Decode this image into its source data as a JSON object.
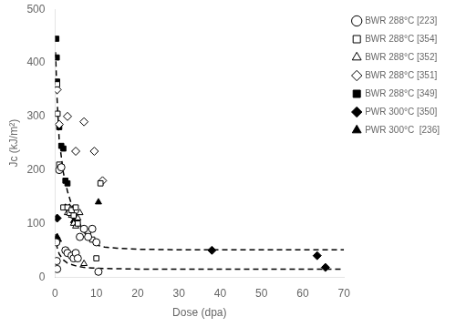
{
  "chart_data": {
    "type": "scatter",
    "xlabel": "Dose (dpa)",
    "ylabel": "Jc (kJ/m²)",
    "xlim": [
      0,
      70
    ],
    "ylim": [
      0,
      500
    ],
    "xticks": [
      0,
      10,
      20,
      30,
      40,
      50,
      60,
      70
    ],
    "yticks": [
      0,
      100,
      200,
      300,
      400,
      500
    ],
    "grid": false,
    "legend": "upper right",
    "series": [
      {
        "type": "line",
        "line_style": "dashed",
        "color": "#000000",
        "x": [
          0.1,
          0.5,
          1.0,
          2.0,
          3.0,
          4.0,
          5.0,
          6.0,
          7.0,
          8.0,
          9.0,
          10.0,
          12.0,
          15.0,
          20.0,
          30.0,
          40.0,
          50.0,
          60.0,
          70.0
        ],
        "values": [
          420,
          330,
          255,
          195,
          160,
          135,
          115,
          98,
          84,
          74,
          66,
          60,
          56,
          54,
          52,
          51,
          51,
          51,
          51,
          51
        ]
      },
      {
        "type": "line",
        "line_style": "dashed",
        "color": "#000000",
        "x": [
          0.1,
          0.5,
          1.0,
          2.0,
          3.0,
          5.0,
          7.0,
          9.0,
          12.0,
          20.0,
          40.0,
          70.0
        ],
        "values": [
          80,
          55,
          43,
          32,
          26,
          21,
          18,
          17,
          16,
          15,
          15,
          15
        ]
      },
      {
        "name": "BWR 288°C [223]",
        "marker": "circle",
        "color": "#000000",
        "x": [
          0.3,
          0.4,
          0.5,
          1.0,
          1.5,
          2.5,
          3.0,
          4.0,
          4.5,
          5.0,
          5.5,
          6.0,
          7.0,
          8.0,
          9.0,
          10.0,
          10.5
        ],
        "values": [
          65,
          30,
          15,
          200,
          205,
          50,
          45,
          40,
          35,
          45,
          35,
          75,
          90,
          75,
          90,
          65,
          10
        ]
      },
      {
        "name": "BWR 288°C [354]",
        "marker": "square",
        "color": "#000000",
        "x": [
          0.5,
          0.6,
          1.0,
          1.5,
          2.0,
          3.0,
          3.5,
          4.0,
          4.5,
          5.0,
          5.5,
          7.0,
          8.0,
          9.0,
          10.0,
          11.0
        ],
        "values": [
          360,
          305,
          210,
          205,
          130,
          130,
          120,
          125,
          115,
          130,
          100,
          90,
          85,
          70,
          35,
          175
        ]
      },
      {
        "name": "BWR 288°C [352]",
        "marker": "triangle",
        "color": "#000000",
        "x": [
          2.5,
          3.0,
          3.5,
          4.0,
          4.5,
          5.0,
          5.5,
          6.0,
          7.0
        ],
        "values": [
          130,
          120,
          130,
          115,
          100,
          95,
          110,
          120,
          25
        ]
      },
      {
        "name": "BWR 288°C [351]",
        "marker": "diamond",
        "color": "#000000",
        "x": [
          0.5,
          1.0,
          3.0,
          5.0,
          7.0,
          9.5,
          11.5
        ],
        "values": [
          350,
          285,
          300,
          235,
          290,
          235,
          180
        ]
      },
      {
        "name": "BWR 288°C [349]",
        "marker": "filled_square",
        "color": "#000000",
        "x": [
          0.3,
          0.4,
          0.5,
          1.0,
          1.5,
          2.0,
          2.5,
          3.0
        ],
        "values": [
          445,
          410,
          365,
          280,
          245,
          240,
          180,
          175
        ]
      },
      {
        "name": "PWR 300°C [350]",
        "marker": "filled_diamond",
        "color": "#000000",
        "x": [
          0.5,
          38.0,
          63.5,
          65.5
        ],
        "values": [
          110,
          50,
          40,
          18
        ]
      },
      {
        "name": "PWR 300°C  [236]",
        "marker": "filled_triangle",
        "color": "#000000",
        "x": [
          0.3,
          0.5,
          0.8,
          4.5,
          5.5,
          10.5
        ],
        "values": [
          65,
          75,
          70,
          105,
          100,
          140
        ]
      }
    ]
  }
}
